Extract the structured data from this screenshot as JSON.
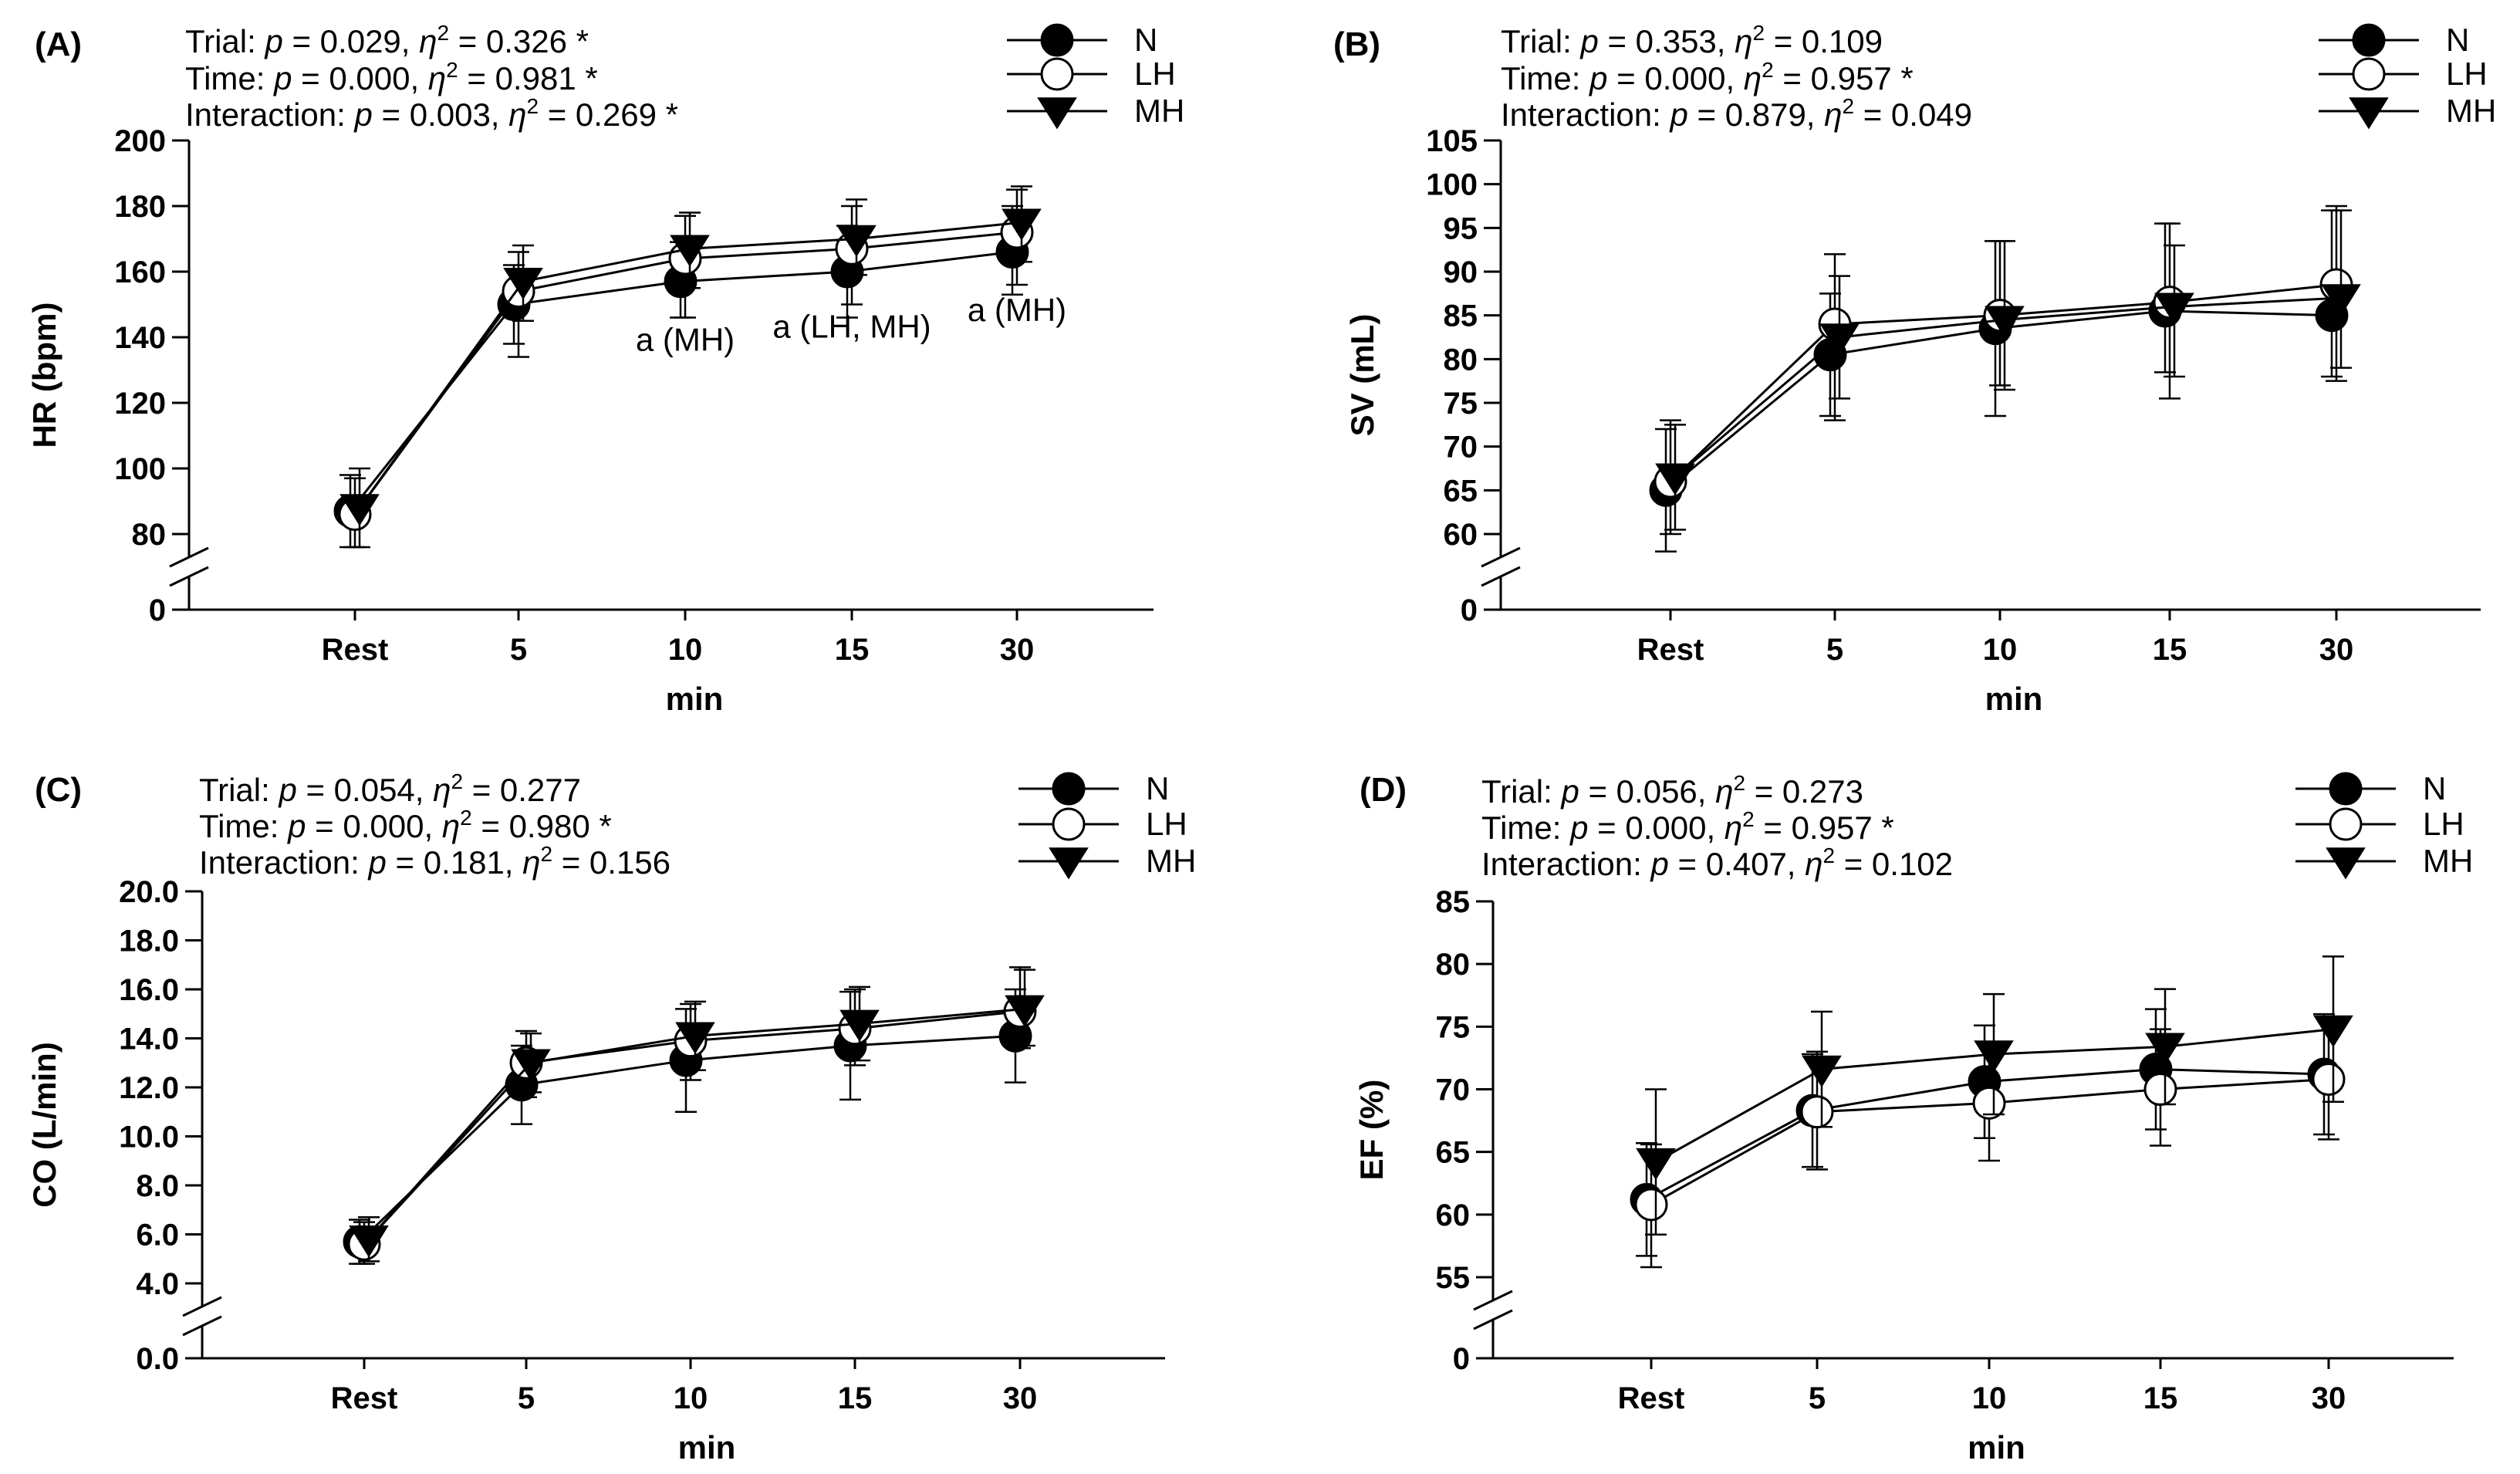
{
  "chart_data": [
    {
      "id": "A",
      "type": "line",
      "panel_label": "(A)",
      "xlabel": "min",
      "ylabel": "HR (bpm)",
      "categories": [
        "Rest",
        "5",
        "10",
        "15",
        "30"
      ],
      "ylim": [
        80,
        200
      ],
      "yticks": [
        80,
        100,
        120,
        140,
        160,
        180,
        200
      ],
      "ytick_labels": [
        "80",
        "100",
        "120",
        "140",
        "160",
        "180",
        "200"
      ],
      "y_zero_label": "0",
      "axis_break": true,
      "stats": [
        {
          "prefix": "Trial: ",
          "p_sym": "p",
          "p_val": " = 0.029, ",
          "eta_sym": "η",
          "eta_sup": "2",
          "eta_val": " = 0.326 *"
        },
        {
          "prefix": "Time: ",
          "p_sym": "p",
          "p_val": " = 0.000, ",
          "eta_sym": "η",
          "eta_sup": "2",
          "eta_val": " = 0.981 *"
        },
        {
          "prefix": "Interaction: ",
          "p_sym": "p",
          "p_val": " = 0.003, ",
          "eta_sym": "η",
          "eta_sup": "2",
          "eta_val": " = 0.269 *"
        }
      ],
      "legend": [
        "N",
        "LH",
        "MH"
      ],
      "series": [
        {
          "name": "N",
          "marker": "filled-circle",
          "values": [
            87,
            150,
            157,
            160,
            166
          ],
          "err_up": [
            11,
            12,
            12,
            14,
            14
          ],
          "err_down": [
            11,
            12,
            11,
            14,
            13
          ]
        },
        {
          "name": "LH",
          "marker": "open-circle",
          "values": [
            86,
            154,
            164,
            167,
            172
          ],
          "err_up": [
            11,
            12,
            13,
            13,
            13
          ],
          "err_down": [
            10,
            20,
            18,
            17,
            16
          ]
        },
        {
          "name": "MH",
          "marker": "filled-triangle-down",
          "values": [
            88,
            157,
            167,
            170,
            175
          ],
          "err_up": [
            12,
            11,
            11,
            12,
            11
          ],
          "err_down": [
            12,
            12,
            12,
            11,
            12
          ]
        }
      ],
      "annotations": [
        {
          "text": "a (MH)",
          "x_cat": "10",
          "y": 143
        },
        {
          "text": "a (LH, MH)",
          "x_cat": "15",
          "y": 147
        },
        {
          "text": "a (MH)",
          "x_cat": "30",
          "y": 152
        }
      ]
    },
    {
      "id": "B",
      "type": "line",
      "panel_label": "(B)",
      "xlabel": "min",
      "ylabel": "SV (mL)",
      "categories": [
        "Rest",
        "5",
        "10",
        "15",
        "30"
      ],
      "ylim": [
        60,
        105
      ],
      "yticks": [
        60,
        65,
        70,
        75,
        80,
        85,
        90,
        95,
        100,
        105
      ],
      "ytick_labels": [
        "60",
        "65",
        "70",
        "75",
        "80",
        "85",
        "90",
        "95",
        "100",
        "105"
      ],
      "y_zero_label": "0",
      "axis_break": true,
      "stats": [
        {
          "prefix": "Trial: ",
          "p_sym": "p",
          "p_val": " = 0.353, ",
          "eta_sym": "η",
          "eta_sup": "2",
          "eta_val": " = 0.109"
        },
        {
          "prefix": "Time: ",
          "p_sym": "p",
          "p_val": " = 0.000, ",
          "eta_sym": "η",
          "eta_sup": "2",
          "eta_val": " = 0.957 *"
        },
        {
          "prefix": "Interaction: ",
          "p_sym": "p",
          "p_val": " = 0.879, ",
          "eta_sym": "η",
          "eta_sup": "2",
          "eta_val": " = 0.049"
        }
      ],
      "legend": [
        "N",
        "LH",
        "MH"
      ],
      "series": [
        {
          "name": "N",
          "marker": "filled-circle",
          "values": [
            65,
            80.5,
            83.5,
            85.5,
            85
          ],
          "err_up": [
            7,
            7,
            10,
            10,
            12
          ],
          "err_down": [
            7,
            7,
            10,
            7,
            7
          ]
        },
        {
          "name": "LH",
          "marker": "open-circle",
          "values": [
            66,
            84,
            85,
            86.5,
            88.5
          ],
          "err_up": [
            7,
            8,
            8.5,
            9,
            9
          ],
          "err_down": [
            6,
            11,
            8,
            11,
            11
          ]
        },
        {
          "name": "MH",
          "marker": "filled-triangle-down",
          "values": [
            66.5,
            82.5,
            84.5,
            86,
            87
          ],
          "err_up": [
            6,
            7,
            9,
            7,
            10
          ],
          "err_down": [
            6,
            7,
            8,
            8,
            8
          ]
        }
      ],
      "annotations": []
    },
    {
      "id": "C",
      "type": "line",
      "panel_label": "(C)",
      "xlabel": "min",
      "ylabel": "CO (L/min)",
      "categories": [
        "Rest",
        "5",
        "10",
        "15",
        "30"
      ],
      "ylim": [
        4,
        20
      ],
      "yticks": [
        4,
        6,
        8,
        10,
        12,
        14,
        16,
        18,
        20
      ],
      "ytick_labels": [
        "4.0",
        "6.0",
        "8.0",
        "10.0",
        "12.0",
        "14.0",
        "16.0",
        "18.0",
        "20.0"
      ],
      "y_zero_label": "0.0",
      "axis_break": true,
      "stats": [
        {
          "prefix": "Trial: ",
          "p_sym": "p",
          "p_val": " = 0.054, ",
          "eta_sym": "η",
          "eta_sup": "2",
          "eta_val": " = 0.277"
        },
        {
          "prefix": "Time: ",
          "p_sym": "p",
          "p_val": " = 0.000, ",
          "eta_sym": "η",
          "eta_sup": "2",
          "eta_val": " = 0.980 *"
        },
        {
          "prefix": "Interaction: ",
          "p_sym": "p",
          "p_val": " = 0.181, ",
          "eta_sym": "η",
          "eta_sup": "2",
          "eta_val": " = 0.156"
        }
      ],
      "legend": [
        "N",
        "LH",
        "MH"
      ],
      "series": [
        {
          "name": "N",
          "marker": "filled-circle",
          "values": [
            5.7,
            12.1,
            13.1,
            13.7,
            14.1
          ],
          "err_up": [
            0.9,
            1.6,
            2.1,
            2.2,
            1.9
          ],
          "err_down": [
            0.9,
            1.6,
            2.1,
            2.2,
            1.9
          ]
        },
        {
          "name": "LH",
          "marker": "open-circle",
          "values": [
            5.6,
            13.0,
            13.9,
            14.4,
            15.1
          ],
          "err_up": [
            0.9,
            1.3,
            1.5,
            1.6,
            1.8
          ],
          "err_down": [
            0.8,
            1.4,
            1.6,
            1.5,
            1.5
          ]
        },
        {
          "name": "MH",
          "marker": "filled-triangle-down",
          "values": [
            5.8,
            13.0,
            14.1,
            14.6,
            15.2
          ],
          "err_up": [
            0.9,
            1.2,
            1.4,
            1.5,
            1.6
          ],
          "err_down": [
            0.9,
            1.2,
            1.4,
            1.5,
            1.5
          ]
        }
      ],
      "annotations": []
    },
    {
      "id": "D",
      "type": "line",
      "panel_label": "(D)",
      "xlabel": "min",
      "ylabel": "EF (%)",
      "categories": [
        "Rest",
        "5",
        "10",
        "15",
        "30"
      ],
      "ylim": [
        55,
        85
      ],
      "yticks": [
        55,
        60,
        65,
        70,
        75,
        80,
        85
      ],
      "ytick_labels": [
        "55",
        "60",
        "65",
        "70",
        "75",
        "80",
        "85"
      ],
      "y_zero_label": "0",
      "axis_break": true,
      "stats": [
        {
          "prefix": "Trial: ",
          "p_sym": "p",
          "p_val": " = 0.056, ",
          "eta_sym": "η",
          "eta_sup": "2",
          "eta_val": " = 0.273"
        },
        {
          "prefix": "Time: ",
          "p_sym": "p",
          "p_val": " = 0.000, ",
          "eta_sym": "η",
          "eta_sup": "2",
          "eta_val": " = 0.957 *"
        },
        {
          "prefix": "Interaction: ",
          "p_sym": "p",
          "p_val": " = 0.407, ",
          "eta_sym": "η",
          "eta_sup": "2",
          "eta_val": " = 0.102"
        }
      ],
      "legend": [
        "N",
        "LH",
        "MH"
      ],
      "series": [
        {
          "name": "N",
          "marker": "filled-circle",
          "values": [
            61.2,
            68.3,
            70.6,
            71.6,
            71.2
          ],
          "err_up": [
            4.5,
            4.5,
            4.5,
            4.8,
            4.8
          ],
          "err_down": [
            4.5,
            4.5,
            4.5,
            4.8,
            4.8
          ]
        },
        {
          "name": "LH",
          "marker": "open-circle",
          "values": [
            60.8,
            68.2,
            68.9,
            70.0,
            70.8
          ],
          "err_up": [
            4.8,
            4.8,
            4.8,
            4.8,
            4.8
          ],
          "err_down": [
            5.0,
            4.6,
            4.6,
            4.5,
            4.8
          ]
        },
        {
          "name": "MH",
          "marker": "filled-triangle-down",
          "values": [
            64.2,
            71.6,
            72.8,
            73.4,
            74.8
          ],
          "err_up": [
            5.8,
            4.6,
            4.8,
            4.6,
            5.8
          ],
          "err_down": [
            5.8,
            4.6,
            4.8,
            4.6,
            5.8
          ]
        }
      ],
      "annotations": []
    }
  ]
}
